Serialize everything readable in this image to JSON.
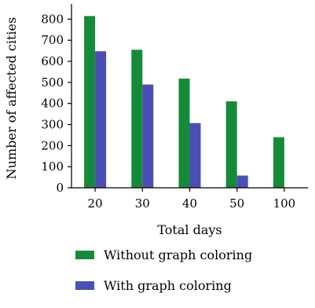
{
  "chart_data": {
    "type": "bar",
    "title": "",
    "xlabel": "Total days",
    "ylabel": "Number of affected cities",
    "categories": [
      "20",
      "30",
      "40",
      "50",
      "100"
    ],
    "series": [
      {
        "name": "Without graph coloring",
        "color": "#178a3a",
        "values": [
          815,
          655,
          518,
          410,
          240
        ]
      },
      {
        "name": "With graph coloring",
        "color": "#4b4fb5",
        "values": [
          648,
          490,
          307,
          58,
          null
        ]
      }
    ],
    "yticks": [
      0,
      100,
      200,
      300,
      400,
      500,
      600,
      700,
      800
    ],
    "ylim": [
      0,
      850
    ],
    "grid": false,
    "legend_position": "bottom"
  }
}
